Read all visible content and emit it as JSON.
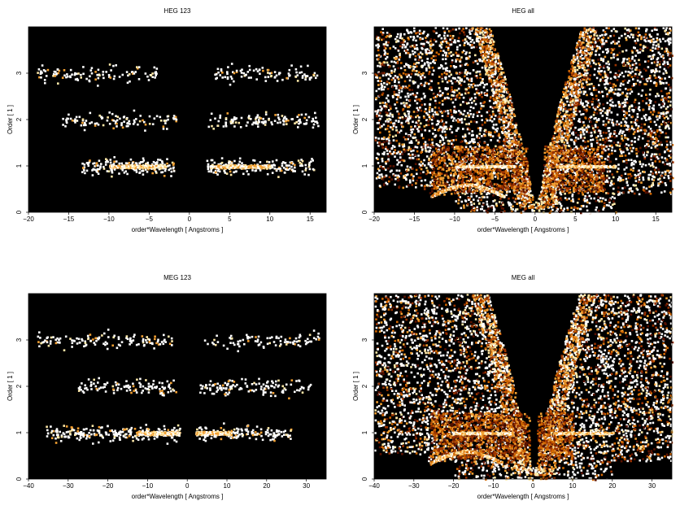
{
  "figure": {
    "background": "#ffffff",
    "plot_background": "#000000"
  },
  "colormap": [
    "#5a1200",
    "#9a3300",
    "#d06600",
    "#f2a032",
    "#ffe9a8",
    "#ffffff"
  ],
  "chart_data": [
    {
      "type": "heatmap",
      "title": "HEG 123",
      "xlabel": "order*Wavelength [ Angstroms ]",
      "ylabel": "Order [ 1 ]",
      "xlim": [
        -20,
        17
      ],
      "ylim": [
        0,
        4
      ],
      "xticks": [
        -20,
        -15,
        -10,
        -5,
        0,
        5,
        10,
        15
      ],
      "yticks": [
        0,
        1,
        2,
        3
      ],
      "grid": false,
      "bands": [
        {
          "order": 1,
          "x_range": [
            -13.5,
            15.5
          ],
          "gap": [
            -2,
            2
          ],
          "bright": [
            [
              -10,
              -3
            ],
            [
              2.5,
              10
            ]
          ]
        },
        {
          "order": 2,
          "x_range": [
            -16,
            16
          ],
          "gap": [
            -1.5,
            2
          ]
        },
        {
          "order": 3,
          "x_range": [
            -19,
            16
          ],
          "gap": [
            -4,
            3
          ]
        }
      ]
    },
    {
      "type": "heatmap",
      "title": "HEG all",
      "xlabel": "order*Wavelength [ Angstroms ]",
      "ylabel": "Order [ 1 ]",
      "xlim": [
        -20,
        17
      ],
      "ylim": [
        0,
        4
      ],
      "xticks": [
        -20,
        -15,
        -10,
        -5,
        0,
        5,
        10,
        15
      ],
      "yticks": [
        0,
        1,
        2,
        3
      ],
      "grid": false
    },
    {
      "type": "heatmap",
      "title": "MEG 123",
      "xlabel": "order*Wavelength [ Angstroms ]",
      "ylabel": "Order [ 1 ]",
      "xlim": [
        -40,
        35
      ],
      "ylim": [
        0,
        4
      ],
      "xticks": [
        -40,
        -30,
        -20,
        -10,
        0,
        10,
        20,
        30
      ],
      "yticks": [
        0,
        1,
        2,
        3
      ],
      "grid": false,
      "bands": [
        {
          "order": 1,
          "x_range": [
            -36,
            26
          ],
          "gap": [
            -2,
            2
          ],
          "bright": [
            [
              -13,
              -2
            ],
            [
              2,
              11
            ]
          ]
        },
        {
          "order": 2,
          "x_range": [
            -28,
            31
          ],
          "gap": [
            -3,
            3
          ]
        },
        {
          "order": 3,
          "x_range": [
            -38,
            33
          ],
          "gap": [
            -4,
            4
          ]
        }
      ]
    },
    {
      "type": "heatmap",
      "title": "MEG all",
      "xlabel": "order*Wavelength [ Angstroms ]",
      "ylabel": "Order [ 1 ]",
      "xlim": [
        -40,
        35
      ],
      "ylim": [
        0,
        4
      ],
      "xticks": [
        -40,
        -30,
        -20,
        -10,
        0,
        10,
        20,
        30
      ],
      "yticks": [
        0,
        1,
        2,
        3
      ],
      "grid": false
    }
  ]
}
